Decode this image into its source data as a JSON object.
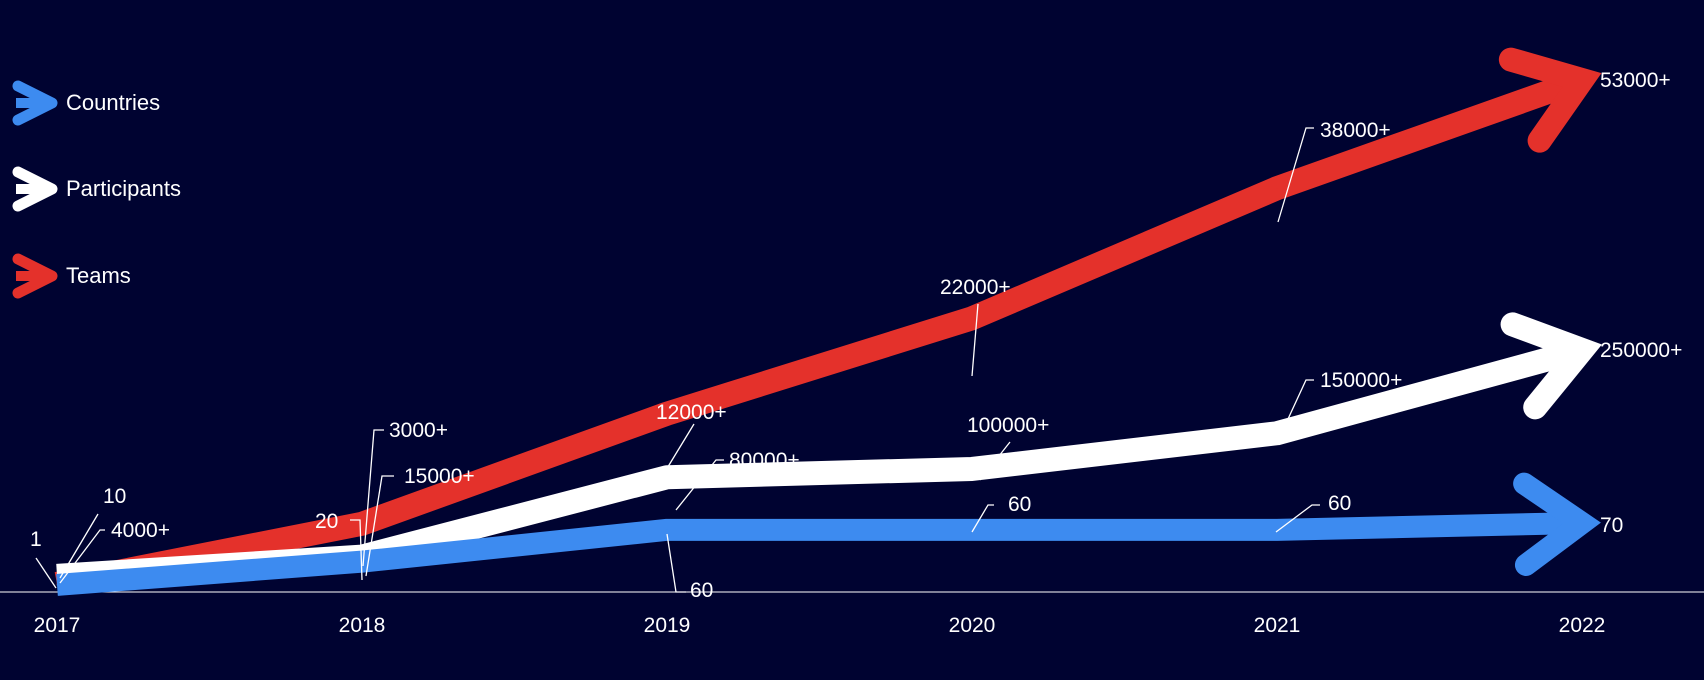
{
  "chart_data": {
    "type": "line",
    "categories": [
      "2017",
      "2018",
      "2019",
      "2020",
      "2021",
      "2022"
    ],
    "series": [
      {
        "name": "Countries",
        "color": "#3d8bf0",
        "values": [
          1,
          20,
          60,
          60,
          60,
          70
        ],
        "labels": [
          "1",
          "20",
          "60",
          "60",
          "60",
          "70"
        ]
      },
      {
        "name": "Participants",
        "color": "#ffffff",
        "values": [
          4000,
          15000,
          80000,
          100000,
          150000,
          250000
        ],
        "labels": [
          "4000+",
          "15000+",
          "80000+",
          "100000+",
          "150000+",
          "250000+"
        ]
      },
      {
        "name": "Teams",
        "color": "#e4312b",
        "values": [
          10,
          3000,
          12000,
          22000,
          38000,
          53000
        ],
        "labels": [
          "10",
          "3000+",
          "12000+",
          "22000+",
          "38000+",
          "53000+"
        ]
      }
    ],
    "legend_position": "top-left",
    "grid": false
  }
}
